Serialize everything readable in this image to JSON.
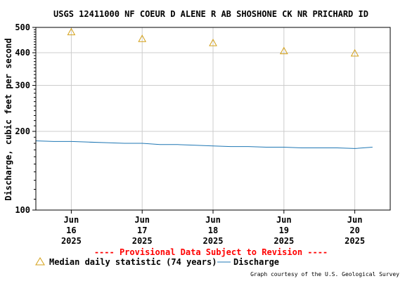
{
  "colors": {
    "background": "#ffffff",
    "frame": "#000000",
    "grid": "#cccccc",
    "discharge_line": "#1f77b4",
    "median_marker": "#d4a017",
    "provisional_text": "#ff0000"
  },
  "chart_data": {
    "type": "line",
    "title": "USGS 12411000 NF COEUR D ALENE R AB SHOSHONE CK NR PRICHARD ID",
    "ylabel": "Discharge, cubic feet per second",
    "xlabel": "",
    "y_scale": "log",
    "ylim": [
      100,
      500
    ],
    "y_ticks": [
      {
        "value": 100,
        "label": "100"
      },
      {
        "value": 200,
        "label": "200"
      },
      {
        "value": 300,
        "label": "300"
      },
      {
        "value": 400,
        "label": "400"
      },
      {
        "value": 500,
        "label": "500"
      }
    ],
    "x_ticks": [
      {
        "date": "2025-06-16",
        "line1": "Jun",
        "line2": "16",
        "line3": "2025"
      },
      {
        "date": "2025-06-17",
        "line1": "Jun",
        "line2": "17",
        "line3": "2025"
      },
      {
        "date": "2025-06-18",
        "line1": "Jun",
        "line2": "18",
        "line3": "2025"
      },
      {
        "date": "2025-06-19",
        "line1": "Jun",
        "line2": "19",
        "line3": "2025"
      },
      {
        "date": "2025-06-20",
        "line1": "Jun",
        "line2": "20",
        "line3": "2025"
      }
    ],
    "grid": true,
    "series": [
      {
        "name": "Discharge",
        "style": "line",
        "x": [
          "2025-06-15 12:00",
          "2025-06-15 18:00",
          "2025-06-16 00:00",
          "2025-06-16 06:00",
          "2025-06-16 12:00",
          "2025-06-16 18:00",
          "2025-06-17 00:00",
          "2025-06-17 06:00",
          "2025-06-17 12:00",
          "2025-06-17 18:00",
          "2025-06-18 00:00",
          "2025-06-18 06:00",
          "2025-06-18 12:00",
          "2025-06-18 18:00",
          "2025-06-19 00:00",
          "2025-06-19 06:00",
          "2025-06-19 12:00",
          "2025-06-19 18:00",
          "2025-06-20 00:00",
          "2025-06-20 06:00"
        ],
        "y": [
          184,
          183,
          183,
          182,
          181,
          180,
          180,
          178,
          178,
          177,
          176,
          175,
          175,
          174,
          174,
          173,
          173,
          173,
          172,
          174
        ]
      },
      {
        "name": "Median daily statistic (74 years)",
        "style": "triangle",
        "x": [
          "2025-06-16 00:00",
          "2025-06-17 00:00",
          "2025-06-18 00:00",
          "2025-06-19 00:00",
          "2025-06-20 00:00"
        ],
        "y": [
          480,
          452,
          436,
          406,
          398
        ]
      }
    ],
    "x_start": "2025-06-15 12:00",
    "x_end": "2025-06-20 12:00",
    "annotation": "---- Provisional Data Subject to Revision ----",
    "credit": "Graph courtesy of the U.S. Geological Survey"
  }
}
